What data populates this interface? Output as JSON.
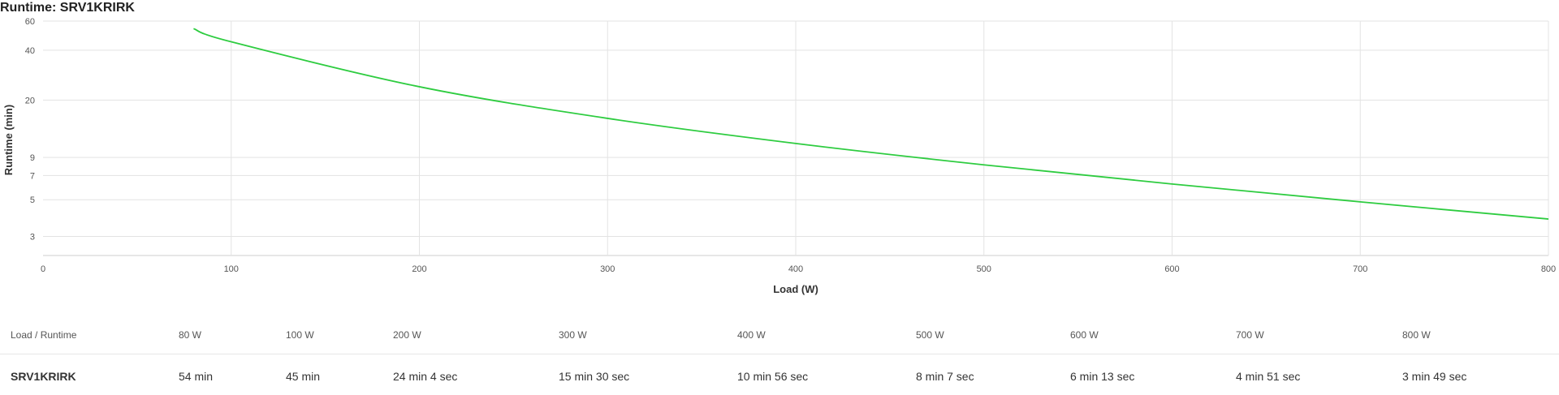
{
  "page_title": "Runtime: SRV1KRIRK",
  "chart_data": {
    "type": "line",
    "title": "Runtime: SRV1KRIRK",
    "xlabel": "Load (W)",
    "ylabel": "Runtime (min)",
    "xlim": [
      0,
      800
    ],
    "ylim": [
      2.3,
      60
    ],
    "y_scale": "log",
    "x_ticks": [
      0,
      100,
      200,
      300,
      400,
      500,
      600,
      700,
      800
    ],
    "y_ticks": [
      3,
      5,
      7,
      9,
      20,
      40,
      60
    ],
    "grid": true,
    "series": [
      {
        "name": "SRV1KRIRK",
        "color": "#2ecc40",
        "x": [
          80,
          100,
          200,
          300,
          400,
          500,
          600,
          700,
          800
        ],
        "y": [
          54,
          45,
          24.07,
          15.5,
          10.93,
          8.12,
          6.22,
          4.85,
          3.82
        ]
      }
    ]
  },
  "table": {
    "header_label": "Load / Runtime",
    "loads": [
      "80 W",
      "100 W",
      "200 W",
      "300 W",
      "400 W",
      "500 W",
      "600 W",
      "700 W",
      "800 W"
    ],
    "rows": [
      {
        "model": "SRV1KRIRK",
        "values": [
          "54 min",
          "45 min",
          "24 min 4 sec",
          "15 min 30 sec",
          "10 min 56 sec",
          "8 min 7 sec",
          "6 min 13 sec",
          "4 min 51 sec",
          "3 min 49 sec"
        ]
      }
    ]
  }
}
